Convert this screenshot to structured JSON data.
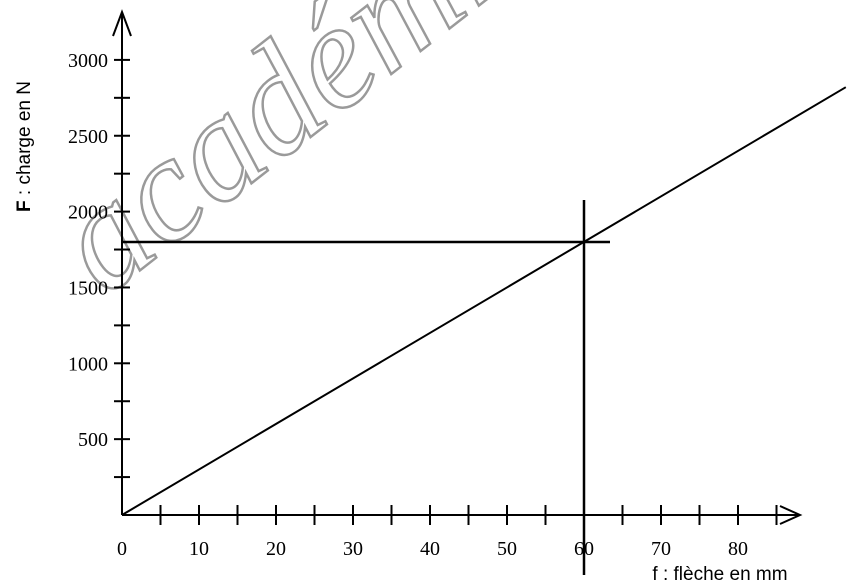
{
  "watermark": "académie en ligne",
  "chart_data": {
    "type": "line",
    "x_label": {
      "bold": "f",
      "rest": " : flèche en mm"
    },
    "y_label": {
      "bold": "F",
      "rest": " : charge en N"
    },
    "xlim": [
      0,
      90
    ],
    "ylim": [
      0,
      3300
    ],
    "x_ticks_minor": [
      5,
      10,
      15,
      20,
      25,
      30,
      35,
      40,
      45,
      50,
      55,
      60,
      65,
      70,
      75,
      80,
      85
    ],
    "x_tick_labels": [
      "0",
      "10",
      "20",
      "30",
      "40",
      "50",
      "60",
      "70",
      "80"
    ],
    "y_ticks_minor": [
      250,
      500,
      750,
      1000,
      1250,
      1500,
      1750,
      2000,
      2250,
      2500,
      2750,
      3000
    ],
    "y_tick_labels": [
      "500",
      "1000",
      "1500",
      "2000",
      "2500",
      "3000"
    ],
    "grid": false,
    "series": [
      {
        "x": [
          0,
          60,
          94
        ],
        "y": [
          0,
          1800,
          2820
        ]
      }
    ],
    "reading": {
      "x": 60,
      "y": 1800
    }
  }
}
